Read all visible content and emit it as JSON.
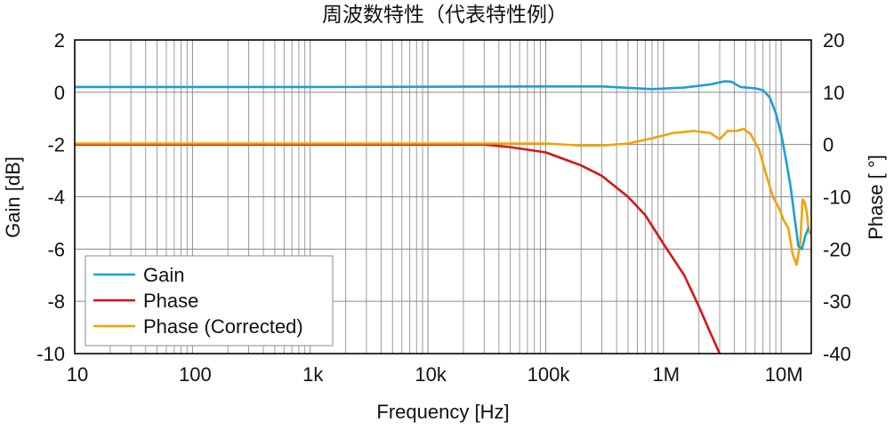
{
  "chart_data": {
    "type": "line",
    "title": "周波数特性（代表特性例）",
    "xlabel": "Frequency [Hz]",
    "ylabel_left": "Gain [dB]",
    "ylabel_right": "Phase [ °]",
    "x_scale": "log",
    "xlim": [
      10,
      18000000
    ],
    "ylim_left": [
      -10,
      2
    ],
    "ylim_right": [
      -40,
      20
    ],
    "x_ticks": [
      {
        "value": 10,
        "label": "10"
      },
      {
        "value": 100,
        "label": "100"
      },
      {
        "value": 1000,
        "label": "1k"
      },
      {
        "value": 10000,
        "label": "10k"
      },
      {
        "value": 100000,
        "label": "100k"
      },
      {
        "value": 1000000,
        "label": "1M"
      },
      {
        "value": 10000000,
        "label": "10M"
      }
    ],
    "y_left_ticks": [
      "2",
      "0",
      "-2",
      "-4",
      "-6",
      "-8",
      "-10"
    ],
    "y_right_ticks": [
      "20",
      "10",
      "0",
      "-10",
      "-20",
      "-30",
      "-40"
    ],
    "grid": true,
    "legend_position": "bottom-left",
    "series": [
      {
        "name": "Gain",
        "axis": "left",
        "color": "#1a9fd9",
        "points": [
          [
            10,
            0.2
          ],
          [
            1000,
            0.2
          ],
          [
            100000,
            0.22
          ],
          [
            300000,
            0.22
          ],
          [
            800000,
            0.12
          ],
          [
            1500000,
            0.18
          ],
          [
            2500000,
            0.3
          ],
          [
            3300000,
            0.42
          ],
          [
            3800000,
            0.4
          ],
          [
            4500000,
            0.2
          ],
          [
            6000000,
            0.15
          ],
          [
            7000000,
            0.08
          ],
          [
            8000000,
            -0.2
          ],
          [
            9000000,
            -0.8
          ],
          [
            10000000,
            -1.6
          ],
          [
            11000000,
            -2.6
          ],
          [
            12000000,
            -3.6
          ],
          [
            13000000,
            -4.8
          ],
          [
            14000000,
            -5.9
          ],
          [
            15000000,
            -6.0
          ],
          [
            16000000,
            -5.5
          ],
          [
            17000000,
            -5.2
          ]
        ]
      },
      {
        "name": "Phase",
        "axis": "right",
        "color": "#d7141a",
        "points": [
          [
            10,
            0
          ],
          [
            10000,
            0
          ],
          [
            30000,
            0
          ],
          [
            50000,
            -0.5
          ],
          [
            100000,
            -1.5
          ],
          [
            200000,
            -4
          ],
          [
            300000,
            -6
          ],
          [
            500000,
            -10
          ],
          [
            700000,
            -13.5
          ],
          [
            1000000,
            -19
          ],
          [
            1500000,
            -25
          ],
          [
            2000000,
            -31
          ],
          [
            2500000,
            -36
          ],
          [
            3000000,
            -40
          ]
        ]
      },
      {
        "name": "Phase (Corrected)",
        "axis": "right",
        "color": "#f0a30a",
        "points": [
          [
            10,
            0.2
          ],
          [
            10000,
            0.2
          ],
          [
            50000,
            0.2
          ],
          [
            100000,
            0.2
          ],
          [
            200000,
            -0.2
          ],
          [
            300000,
            -0.2
          ],
          [
            500000,
            0.2
          ],
          [
            800000,
            1.2
          ],
          [
            1200000,
            2.2
          ],
          [
            1800000,
            2.6
          ],
          [
            2500000,
            2.2
          ],
          [
            3000000,
            1.0
          ],
          [
            3500000,
            2.6
          ],
          [
            4200000,
            2.6
          ],
          [
            4800000,
            3.0
          ],
          [
            5500000,
            2.0
          ],
          [
            6500000,
            -1
          ],
          [
            7500000,
            -6
          ],
          [
            8500000,
            -10
          ],
          [
            9500000,
            -12
          ],
          [
            10500000,
            -14.5
          ],
          [
            11500000,
            -16
          ],
          [
            12500000,
            -21
          ],
          [
            13500000,
            -23
          ],
          [
            14500000,
            -19
          ],
          [
            15200000,
            -10.5
          ],
          [
            15800000,
            -11
          ],
          [
            16500000,
            -13
          ],
          [
            17000000,
            -16
          ],
          [
            17500000,
            -17
          ]
        ]
      }
    ]
  }
}
